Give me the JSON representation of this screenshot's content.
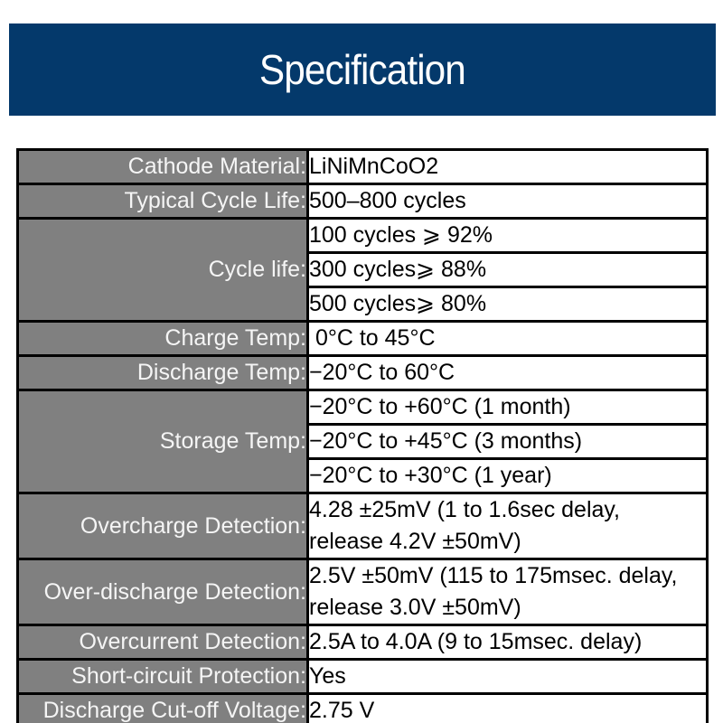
{
  "header": {
    "title": "Specification",
    "background_color": "#04396b",
    "text_color": "#ffffff"
  },
  "spec_table": {
    "label_background_color": "#808080",
    "label_text_color": "#f5f5f5",
    "value_text_color": "#000000",
    "border_color": "#000000",
    "rows": [
      {
        "label": "Cathode Material:",
        "value": "LiNiMnCoO2"
      },
      {
        "label": "Typical Cycle Life:",
        "value": "500–800 cycles"
      },
      {
        "label": "Cycle life:",
        "values": [
          "100 cycles ⩾ 92%",
          "300 cycles⩾ 88%",
          "500 cycles⩾ 80%"
        ]
      },
      {
        "label": "Charge Temp:",
        "value": " 0°C to 45°C"
      },
      {
        "label": "Discharge Temp:",
        "value": "−20°C to 60°C"
      },
      {
        "label": "Storage Temp:",
        "values": [
          "−20°C to +60°C (1 month)",
          "−20°C to +45°C (3 months)",
          "−20°C to +30°C (1 year)"
        ]
      },
      {
        "label": "Overcharge Detection:",
        "value": "4.28 ±25mV (1 to 1.6sec delay,\nrelease 4.2V ±50mV)"
      },
      {
        "label": "Over-discharge Detection:",
        "value": "2.5V ±50mV (115 to 175msec. delay,\nrelease 3.0V ±50mV)"
      },
      {
        "label": "Overcurrent Detection:",
        "value": "2.5A to 4.0A (9 to 15msec. delay)"
      },
      {
        "label": "Short-circuit Protection:",
        "value": "Yes"
      },
      {
        "label": "Discharge Cut-off Voltage:",
        "value": "2.75 V"
      }
    ]
  }
}
